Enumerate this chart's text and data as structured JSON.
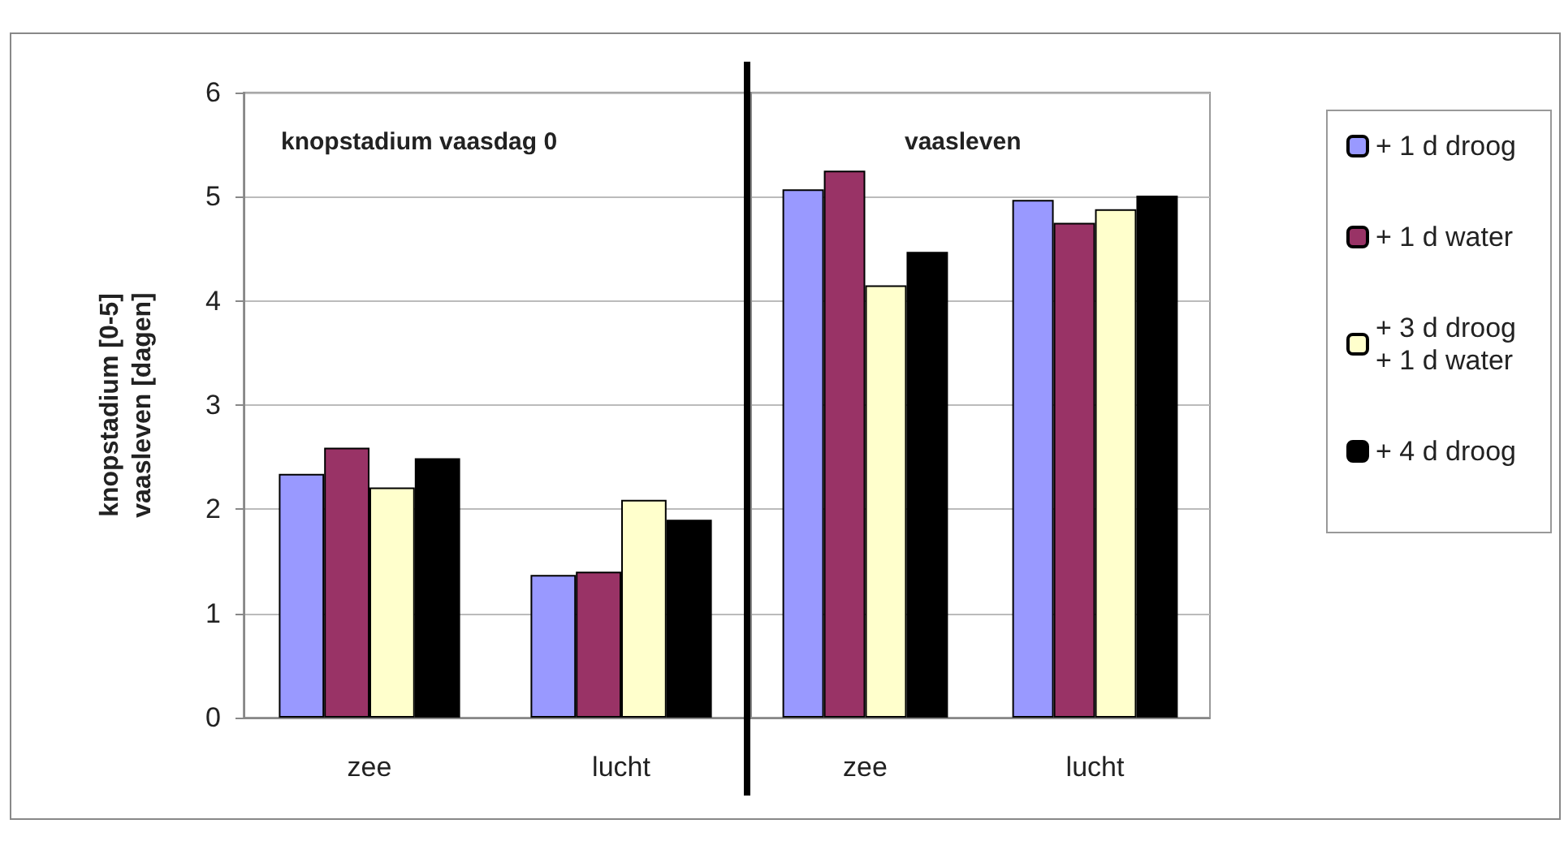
{
  "chart_data": [
    {
      "type": "bar",
      "title": "knopstadium vaasdag 0",
      "ylabel": "knopstadium [0-5]\nvaasleven [dagen]",
      "categories": [
        "zee",
        "lucht"
      ],
      "series": [
        {
          "color": "#9999ff",
          "values": [
            2.34,
            1.37
          ]
        },
        {
          "color": "#993366",
          "values": [
            2.59,
            1.4
          ]
        },
        {
          "color": "#ffffcc",
          "values": [
            2.21,
            2.09
          ]
        },
        {
          "color": "#000000",
          "values": [
            2.49,
            1.9
          ]
        }
      ],
      "ylim": [
        0,
        6
      ],
      "yticks": [
        0,
        1,
        2,
        3,
        4,
        5,
        6
      ],
      "grid": "y"
    },
    {
      "type": "bar",
      "title": "vaasleven",
      "categories": [
        "zee",
        "lucht"
      ],
      "series": [
        {
          "name": "+ 1 d droog",
          "color": "#9999ff",
          "values": [
            5.07,
            4.97
          ]
        },
        {
          "name": "+ 1 d water",
          "color": "#993366",
          "values": [
            5.25,
            4.75
          ]
        },
        {
          "name": "+ 3 d droog + 1 d water",
          "color": "#ffffcc",
          "values": [
            4.15,
            4.88
          ]
        },
        {
          "name": "+ 4 d droog",
          "color": "#000000",
          "values": [
            4.47,
            5.01
          ]
        }
      ],
      "ylim": [
        0,
        6
      ],
      "yticks": [
        0,
        1,
        2,
        3,
        4,
        5,
        6
      ],
      "grid": "y",
      "tick_labels": "x",
      "legend": "right"
    }
  ]
}
